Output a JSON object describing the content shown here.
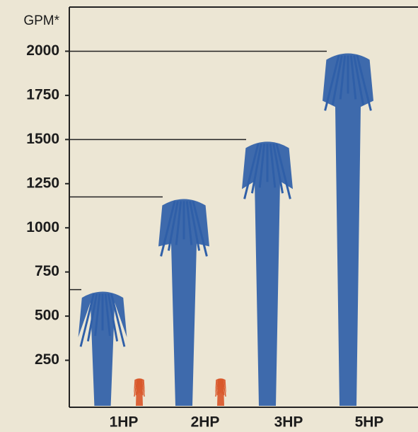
{
  "chart_data": {
    "type": "fountain",
    "y_label": "GPM*",
    "categories": [
      "1HP",
      "2HP",
      "3HP",
      "5HP"
    ],
    "series": [
      {
        "color": "#2f5fa8",
        "values": [
          650,
          1175,
          1500,
          2000
        ]
      },
      {
        "color": "#d9582b",
        "values": [
          150,
          150,
          null,
          null
        ]
      }
    ],
    "ylim": [
      0,
      2250
    ],
    "yticks": [
      250,
      500,
      750,
      1000,
      1250,
      1500,
      1750,
      2000
    ],
    "reference_lines": true
  }
}
